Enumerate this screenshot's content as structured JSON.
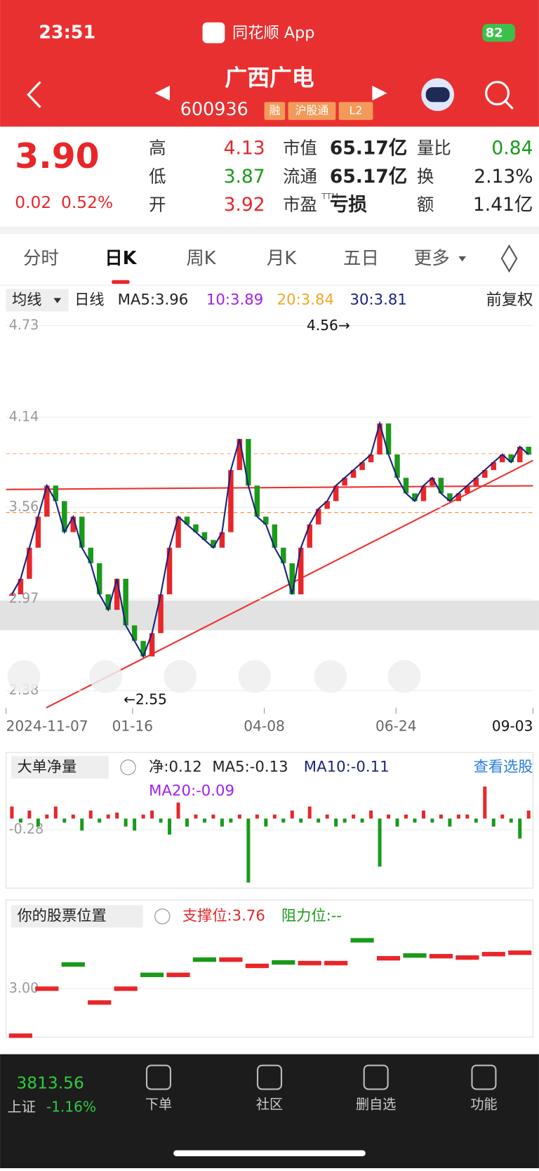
{
  "status_bar": {
    "time": "23:51",
    "app": "同花顺 App",
    "battery": "82"
  },
  "header": {
    "title": "广西广电",
    "code": "600936",
    "tags": [
      "融",
      "沪股通",
      "L2"
    ]
  },
  "quote": {
    "price": "3.90",
    "change": "0.02",
    "change_pct": "0.52%",
    "fields": [
      {
        "label": "高",
        "value": "4.13"
      },
      {
        "label": "低",
        "value": "3.87"
      },
      {
        "label": "开",
        "value": "3.92"
      },
      {
        "label": "市值",
        "value": "65.17亿"
      },
      {
        "label": "流通",
        "value": "65.17亿"
      },
      {
        "label": "市盈",
        "sup": "TTM",
        "value": "亏损"
      },
      {
        "label": "量比",
        "value": "0.84"
      },
      {
        "label": "换",
        "value": "2.13%"
      },
      {
        "label": "额",
        "value": "1.41亿"
      }
    ]
  },
  "tabs": [
    "分时",
    "日K",
    "周K",
    "月K",
    "五日",
    "更多"
  ],
  "kline": {
    "indicator": "均线",
    "period": "日线",
    "ma": [
      "MA5:3.96",
      "10:3.89",
      "20:3.84",
      "30:3.81"
    ],
    "adjust": "前复权",
    "ylim": [
      2.38,
      4.73
    ],
    "yticks": [
      4.73,
      4.14,
      3.56,
      2.97,
      2.38
    ],
    "high_label": "4.56→",
    "low_label": "←2.55",
    "x_labels": [
      "2024-11-07",
      "01-16",
      "04-08",
      "06-24",
      "09-03"
    ],
    "closes": [
      3.0,
      3.1,
      3.3,
      3.5,
      3.7,
      3.6,
      3.4,
      3.5,
      3.3,
      3.2,
      3.0,
      2.9,
      3.1,
      2.8,
      2.7,
      2.6,
      2.75,
      3.0,
      3.3,
      3.5,
      3.45,
      3.4,
      3.35,
      3.3,
      3.4,
      3.8,
      4.0,
      3.7,
      3.5,
      3.45,
      3.3,
      3.2,
      3.0,
      3.3,
      3.45,
      3.55,
      3.6,
      3.7,
      3.75,
      3.8,
      3.85,
      3.9,
      4.1,
      3.9,
      3.75,
      3.65,
      3.6,
      3.7,
      3.75,
      3.65,
      3.6,
      3.65,
      3.7,
      3.75,
      3.8,
      3.85,
      3.9,
      3.85,
      3.95,
      3.9
    ]
  },
  "flow": {
    "indicator": "大单净量",
    "net": "净:0.12",
    "ma": [
      "MA5:-0.13",
      "MA10:-0.11",
      "MA20:-0.09"
    ],
    "link": "查看选股",
    "ylim": [
      -1.7,
      1.0
    ],
    "yticks": [
      -0.28
    ],
    "values": [
      0.3,
      -0.1,
      0.2,
      -0.2,
      0.1,
      0.3,
      -0.1,
      0.1,
      -0.3,
      0.2,
      -0.1,
      0.1,
      0.15,
      -0.2,
      -0.3,
      0.1,
      0.2,
      -0.1,
      -0.4,
      0.4,
      -0.2,
      0.1,
      -0.1,
      0.1,
      -0.2,
      -0.1,
      0.1,
      -1.6,
      0.1,
      -0.2,
      0.1,
      -0.1,
      0.2,
      -0.1,
      0.3,
      -0.1,
      0.1,
      -0.2,
      -0.1,
      0.1,
      -0.1,
      0.2,
      -1.2,
      0.1,
      -0.2,
      0.1,
      -0.1,
      0.2,
      -0.1,
      0.1,
      -0.2,
      0.1,
      0.1,
      -0.1,
      0.8,
      -0.2,
      0.1,
      -0.1,
      -0.5,
      0.2
    ]
  },
  "position": {
    "indicator": "你的股票位置",
    "support": "支撑位:3.76",
    "resistance": "阻力位:--",
    "ylim": [
      2.3,
      4.1
    ],
    "yticks": [
      {
        "value": 3.0,
        "label": "3.00"
      }
    ],
    "segments": [
      {
        "value": 2.32,
        "color": "red"
      },
      {
        "value": 3.0,
        "color": "red"
      },
      {
        "value": 3.35,
        "color": "green"
      },
      {
        "value": 2.8,
        "color": "red"
      },
      {
        "value": 3.0,
        "color": "red"
      },
      {
        "value": 3.2,
        "color": "green"
      },
      {
        "value": 3.2,
        "color": "red"
      },
      {
        "value": 3.42,
        "color": "green"
      },
      {
        "value": 3.42,
        "color": "red"
      },
      {
        "value": 3.33,
        "color": "red"
      },
      {
        "value": 3.38,
        "color": "green"
      },
      {
        "value": 3.37,
        "color": "red"
      },
      {
        "value": 3.37,
        "color": "red"
      },
      {
        "value": 3.7,
        "color": "green"
      },
      {
        "value": 3.44,
        "color": "red"
      },
      {
        "value": 3.48,
        "color": "green"
      },
      {
        "value": 3.47,
        "color": "red"
      },
      {
        "value": 3.45,
        "color": "red"
      },
      {
        "value": 3.5,
        "color": "red"
      },
      {
        "value": 3.52,
        "color": "red"
      }
    ]
  },
  "bottom_bar": {
    "index_value": "3813.56",
    "index_name": "上证",
    "index_change": "-1.16%",
    "tabs": [
      "下单",
      "社区",
      "删自选",
      "功能"
    ]
  }
}
